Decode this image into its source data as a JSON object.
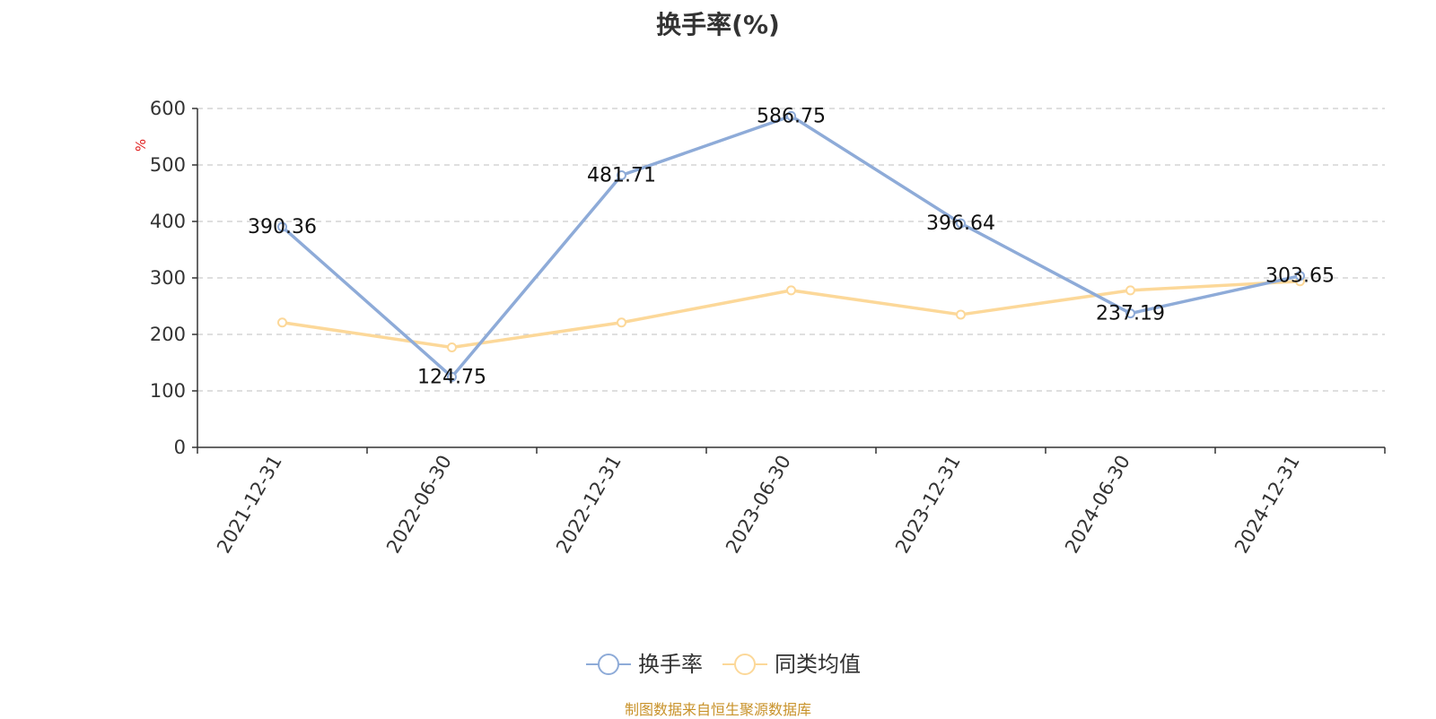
{
  "source_note": "制图数据来自恒生聚源数据库",
  "chart_data": {
    "type": "line",
    "title": "换手率(%)",
    "ylabel": "%",
    "ylim": [
      0,
      600
    ],
    "yticks": [
      0,
      100,
      200,
      300,
      400,
      500,
      600
    ],
    "grid": true,
    "legend_position": "bottom-center",
    "categories": [
      "2021-12-31",
      "2022-06-30",
      "2022-12-31",
      "2023-06-30",
      "2023-12-31",
      "2024-06-30",
      "2024-12-31"
    ],
    "series": [
      {
        "name": "换手率",
        "color": "#8eabd8",
        "values": [
          390.36,
          124.75,
          481.71,
          586.75,
          396.64,
          237.19,
          303.65
        ],
        "show_labels": true
      },
      {
        "name": "同类均值",
        "color": "#fcd899",
        "values": [
          221,
          177,
          221,
          278,
          235,
          278,
          294
        ],
        "show_labels": false
      }
    ]
  }
}
